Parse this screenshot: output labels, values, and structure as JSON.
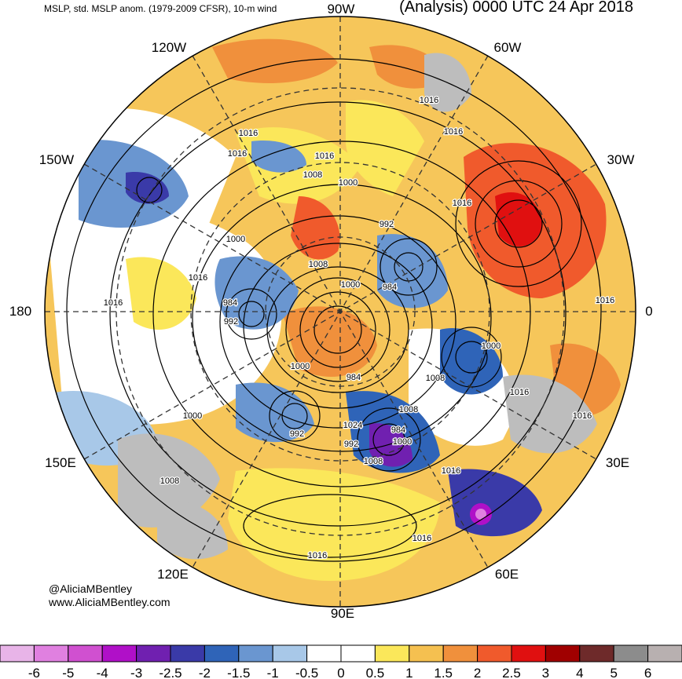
{
  "header": {
    "left": "MSLP, std. MSLP anom. (1979-2009 CFSR), 10-m wind",
    "right": "(Analysis) 0000 UTC 24 Apr 2018"
  },
  "longitude_labels": [
    "90W",
    "60W",
    "30W",
    "0",
    "30E",
    "60E",
    "90E",
    "120E",
    "150E",
    "180",
    "150W",
    "120W"
  ],
  "pressure_labels": [
    "1016",
    "1016",
    "1016",
    "1016",
    "1016",
    "1016",
    "1016",
    "1016",
    "1016",
    "1016",
    "1016",
    "1016",
    "1016",
    "1016",
    "1016",
    "1008",
    "1008",
    "1008",
    "1008",
    "1008",
    "1008",
    "1000",
    "1000",
    "1000",
    "1000",
    "1000",
    "1000",
    "1000",
    "992",
    "992",
    "992",
    "992",
    "984",
    "984",
    "984",
    "984",
    "1024"
  ],
  "credits": {
    "handle": "@AliciaMBentley",
    "website": "www.AliciaMBentley.com"
  },
  "colorbar": {
    "ticks": [
      "-6",
      "-5",
      "-4",
      "-3",
      "-2.5",
      "-2",
      "-1.5",
      "-1",
      "-0.5",
      "0",
      "0.5",
      "1",
      "1.5",
      "2",
      "2.5",
      "3",
      "4",
      "5",
      "6"
    ],
    "colors": [
      "#e8b4e8",
      "#e080e0",
      "#d050d0",
      "#b010c8",
      "#7020b0",
      "#3a3aa8",
      "#2f64b8",
      "#6a96d0",
      "#a8c8e8",
      "#ffffff",
      "#ffffff",
      "#fbe75a",
      "#f5c050",
      "#f0903c",
      "#f05a2c",
      "#e01010",
      "#a00000",
      "#6e2a2a",
      "#8c8c8c",
      "#b8b0b0"
    ]
  }
}
